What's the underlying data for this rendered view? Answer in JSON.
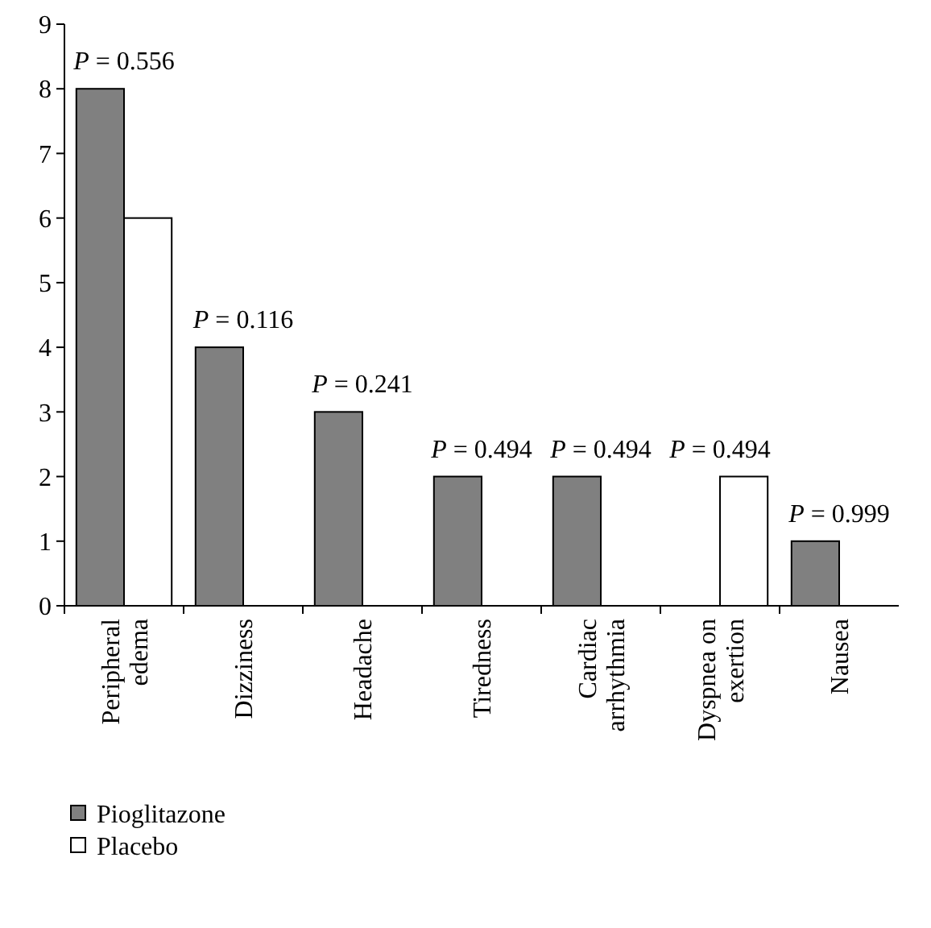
{
  "chart_data": {
    "type": "bar",
    "categories": [
      "Peripheral edema",
      "Dizziness",
      "Headache",
      "Tiredness",
      "Cardiac arrhythmia",
      "Dyspnea on exertion",
      "Nausea"
    ],
    "series": [
      {
        "name": "Pioglitazone",
        "color": "#808080",
        "values": [
          8,
          4,
          3,
          2,
          2,
          0,
          1
        ]
      },
      {
        "name": "Placebo",
        "color": "#ffffff",
        "values": [
          6,
          0,
          0,
          0,
          0,
          2,
          0
        ]
      }
    ],
    "ylim": [
      0,
      9
    ],
    "yticks": [
      0,
      1,
      2,
      3,
      4,
      5,
      6,
      7,
      8,
      9
    ],
    "grid": false,
    "legend": "bottom left",
    "annotations": [
      {
        "text": "P = 0.556",
        "x": "Peripheral edema",
        "y": 8
      },
      {
        "text": "P = 0.116",
        "x": "Dizziness",
        "y": 4
      },
      {
        "text": "P = 0.241",
        "x": "Headache",
        "y": 3
      },
      {
        "text": "P = 0.494",
        "x": "Tiredness",
        "y": 2
      },
      {
        "text": "P = 0.494",
        "x": "Cardiac arrhythmia",
        "y": 2
      },
      {
        "text": "P = 0.494",
        "x": "Dyspnea on exertion",
        "y": 2
      },
      {
        "text": "P = 0.999",
        "x": "Nausea",
        "y": 1
      }
    ]
  }
}
